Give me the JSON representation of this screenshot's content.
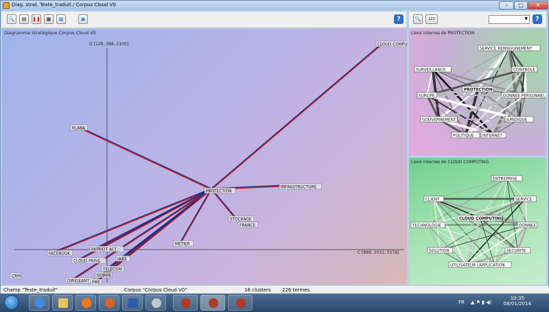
{
  "window": {
    "title": "Diag. strat. Texte_traduit / Corpus Cloud V0",
    "minimize": "–",
    "maximize": "□",
    "close": "✕"
  },
  "toolbar_left": {
    "buttons": [
      {
        "name": "zoom-button",
        "glyph": "🔍"
      },
      {
        "name": "layers-button",
        "glyph": "▤"
      },
      {
        "name": "pause-button",
        "glyph": "❚❚"
      },
      {
        "name": "export-button",
        "glyph": "▦"
      },
      {
        "name": "chart-button",
        "glyph": "▩"
      },
      {
        "name": "camera-button",
        "glyph": "▣"
      }
    ],
    "help_label": "?"
  },
  "toolbar_right": {
    "zoom_glyph": "🔍",
    "counter_label": "123",
    "dropdown_value": "",
    "help_label": "?"
  },
  "main": {
    "title": "Diagramme stratégique Corpus Cloud V0",
    "y_axis_label": "D [128, 388, 2100]",
    "x_axis_label": "C [889, 2031, 5578]"
  },
  "chart_data": [
    {
      "type": "scatter",
      "title": "Diagramme stratégique Corpus Cloud V0",
      "xlabel": "C [889, 2031, 5578]",
      "ylabel": "D [128, 388, 2100]",
      "nodes": [
        "CLOUD COMPUTING",
        "KLABA",
        "PROTECTION",
        "INFRASTRUCTURE",
        "STOCKAGE",
        "FRANCE",
        "METIER",
        "FACEBOOK",
        "PATRIOT ACT",
        "CLOUD PRIVE",
        "IAAS",
        "TELECOM",
        "NORME",
        "DIRIGEANT",
        "PME",
        "CRM"
      ],
      "labels": {
        "cloud_computing": "CLOUD COMPUT",
        "klaba": "KLABA",
        "protection": "PROTECTION",
        "infrastructure": "INFRASTRUCTURE",
        "stockage": "STOCKAGE",
        "france": "FRANCE",
        "metier": "METIER",
        "facebook": "FACEBOOK",
        "patriot_act": "PATRIOT ACT",
        "cloud_prive": "CLOUD PRIVE",
        "iaas": "IAAS",
        "telecom": "TELECOM",
        "norme": "NORME",
        "dirigeant": "DIRIGEANT",
        "pme": "PME",
        "crm": "CRM"
      },
      "links_from_protection": [
        "CLOUD COMPUTING",
        "KLABA",
        "INFRASTRUCTURE",
        "STOCKAGE",
        "METIER",
        "FACEBOOK",
        "PATRIOT ACT",
        "CLOUD PRIVE",
        "IAAS",
        "TELECOM",
        "NORME",
        "DIRIGEANT",
        "PME"
      ]
    },
    {
      "type": "network",
      "title": "Liens internes de PROTECTION",
      "center": "PROTECTION",
      "nodes": [
        "SERVICE RENSEIGNEMENT",
        "SURVEILLANCE",
        "CONTROLE",
        "PROTECTION",
        "EUROPE",
        "DONNEE PERSONNELLE",
        "GOUVERNEMENT",
        "JURIDIQUE",
        "POLITIQUE",
        "INTERNET"
      ]
    },
    {
      "type": "network",
      "title": "Liens internes de CLOUD COMPUTING",
      "center": "CLOUD COMPUTING",
      "nodes": [
        "ENTREPRISE",
        "CLIENT",
        "SERVICE",
        "TECHNOLOGIE",
        "CLOUD COMPUTING",
        "DONNEE",
        "SOLUTION",
        "SECURITE",
        "UTILISATEUR",
        "APPLICATION"
      ]
    }
  ],
  "side1": {
    "title": "Liens internes de PROTECTION",
    "labels": {
      "service_renseignement": "SERVICE RENSEIGNEMENT",
      "surveillance": "SURVEILLANCE",
      "controle": "CONTROLE",
      "protection": "PROTECTION",
      "europe": "EUROPE",
      "donnee_personnelle": "DONNEE PERSONNEL",
      "gouvernement": "GOUVERNEMENT",
      "juridique": "JURIDIQUE",
      "politique": "POLITIQUE",
      "internet": "INTERNET"
    }
  },
  "side2": {
    "title": "Liens internes de CLOUD COMPUTING",
    "labels": {
      "entreprise": "ENTREPRISE",
      "client": "CLIENT",
      "service": "SERVICE",
      "technologie": "TECHNOLOGIE",
      "cloud_computing": "CLOUD COMPUTING",
      "donnee": "DONNEE",
      "solution": "SOLUTION",
      "securite": "SECURITE",
      "utilisateur": "UTILISATEUR",
      "application": "APPLICATION"
    }
  },
  "status": {
    "champ": "Champ \"Texte_traduit\"",
    "corpus": "Corpus \"Corpus Cloud V0\"",
    "clusters": "16 clusters",
    "termes": "226 termes"
  },
  "taskbar": {
    "lang": "FR",
    "time": "10:35",
    "date": "08/01/2014"
  },
  "colors": {
    "link_main": "#1b2f8a",
    "link_highlight": "#d42020"
  }
}
